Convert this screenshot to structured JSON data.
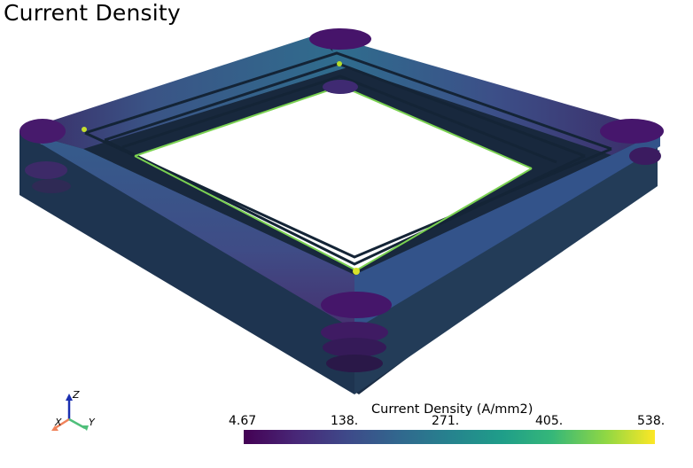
{
  "view": {
    "title": "Current Density",
    "colorbar": {
      "title": "Current Density (A/mm2)",
      "ticks": [
        "4.67",
        "138.",
        "271.",
        "405.",
        "538."
      ],
      "colormap": "viridis",
      "colors": [
        "#440154",
        "#3b528b",
        "#21918c",
        "#5ec962",
        "#fde725"
      ]
    },
    "orientation_axes": {
      "x_label": "X",
      "y_label": "Y",
      "z_label": "Z",
      "x_color": "#f0825a",
      "y_color": "#4fbf7a",
      "z_color": "#1a2fb0"
    },
    "background": "#ffffff"
  }
}
